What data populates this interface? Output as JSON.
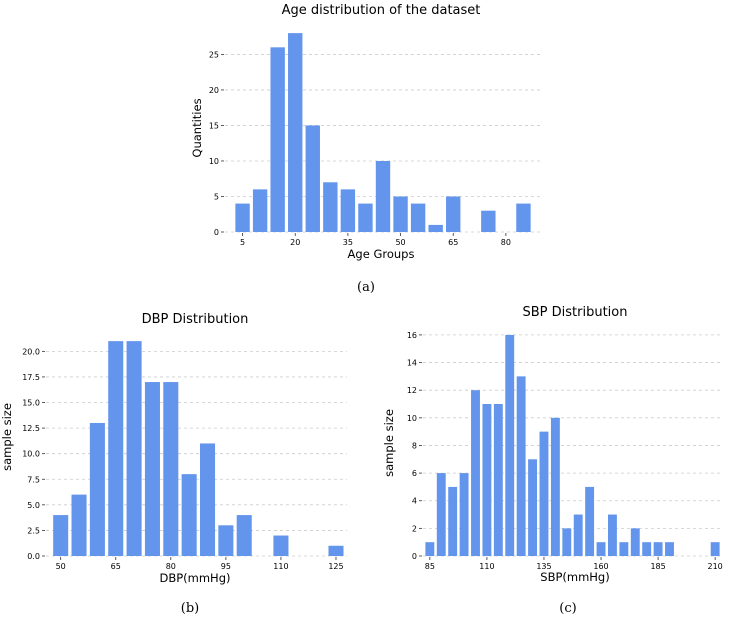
{
  "chart_data": [
    {
      "id": "a",
      "type": "bar",
      "title": "Age distribution of the dataset",
      "xlabel": "Age Groups",
      "ylabel": "Quantities",
      "caption": "(a)",
      "grid": true,
      "x": [
        5,
        10,
        15,
        20,
        25,
        30,
        35,
        40,
        45,
        50,
        55,
        60,
        65,
        70,
        75,
        80,
        85
      ],
      "values": [
        4,
        6,
        26,
        28,
        15,
        7,
        6,
        4,
        10,
        5,
        4,
        1,
        5,
        0,
        3,
        0,
        4
      ],
      "xlim": [
        0,
        90
      ],
      "ylim": [
        0,
        29
      ],
      "xticks": [
        5,
        20,
        35,
        50,
        65,
        80
      ],
      "yticks": [
        0,
        5,
        10,
        15,
        20,
        25
      ],
      "ytick_format": "int"
    },
    {
      "id": "b",
      "type": "bar",
      "title": "DBP Distribution",
      "xlabel": "DBP(mmHg)",
      "ylabel": "sample size",
      "caption": "(b)",
      "grid": true,
      "x": [
        50,
        55,
        60,
        65,
        70,
        75,
        80,
        85,
        90,
        95,
        100,
        105,
        110,
        115,
        120,
        125
      ],
      "values": [
        4,
        6,
        13,
        21,
        21,
        17,
        17,
        8,
        11,
        3,
        4,
        0,
        2,
        0,
        0,
        1
      ],
      "xlim": [
        46,
        128
      ],
      "ylim": [
        0,
        21.5
      ],
      "xticks": [
        50,
        65,
        80,
        95,
        110,
        125
      ],
      "yticks": [
        0,
        2.5,
        5,
        7.5,
        10,
        12.5,
        15,
        17.5,
        20
      ],
      "ytick_format": "one_decimal"
    },
    {
      "id": "c",
      "type": "bar",
      "title": "SBP Distribution",
      "xlabel": "SBP(mmHg)",
      "ylabel": "sample size",
      "caption": "(c)",
      "grid": true,
      "x": [
        85,
        90,
        95,
        100,
        105,
        110,
        115,
        120,
        125,
        130,
        135,
        140,
        145,
        150,
        155,
        160,
        165,
        170,
        175,
        180,
        185,
        190,
        195,
        200,
        205,
        210
      ],
      "values": [
        1,
        6,
        5,
        6,
        12,
        11,
        11,
        16,
        13,
        7,
        9,
        10,
        2,
        3,
        5,
        1,
        3,
        1,
        2,
        1,
        1,
        1,
        0,
        0,
        0,
        1
      ],
      "xlim": [
        82,
        213
      ],
      "ylim": [
        0,
        16.5
      ],
      "xticks": [
        85,
        110,
        135,
        160,
        185,
        210
      ],
      "yticks": [
        0,
        2,
        4,
        6,
        8,
        10,
        12,
        14,
        16
      ],
      "ytick_format": "int"
    }
  ]
}
